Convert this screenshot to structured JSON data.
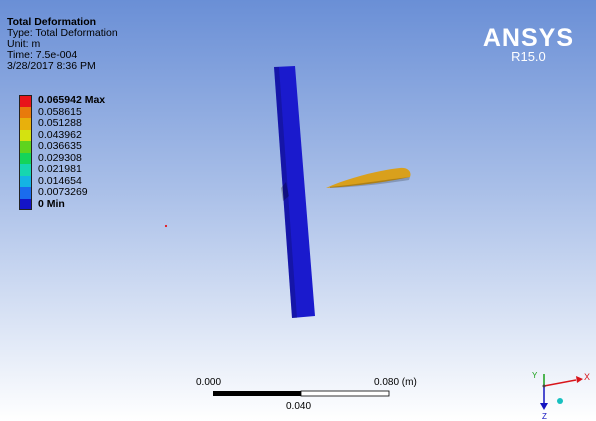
{
  "result": {
    "title": "Total Deformation",
    "type": "Type: Total Deformation",
    "unit": "Unit: m",
    "time": "Time: 7.5e-004",
    "date": "3/28/2017 8:36 PM"
  },
  "brand": {
    "name": "ANSYS",
    "version": "R15.0"
  },
  "legend": {
    "entries": [
      {
        "label": "0.065942 Max",
        "color": "#e8141a"
      },
      {
        "label": "0.058615",
        "color": "#e87a0c"
      },
      {
        "label": "0.051288",
        "color": "#e8b00c"
      },
      {
        "label": "0.043962",
        "color": "#d4e210"
      },
      {
        "label": "0.036635",
        "color": "#5ed41e"
      },
      {
        "label": "0.029308",
        "color": "#14d45a"
      },
      {
        "label": "0.021981",
        "color": "#16d6b0"
      },
      {
        "label": "0.014654",
        "color": "#14b4e4"
      },
      {
        "label": "0.0073269",
        "color": "#1a6cee"
      },
      {
        "label": "0 Min",
        "color": "#1414c8"
      }
    ]
  },
  "scale_bar": {
    "start": "0.000",
    "end": "0.080 (m)",
    "mid": "0.040"
  },
  "triad": {
    "x": "X",
    "y": "Y",
    "z": "Z"
  },
  "colors": {
    "plate": "#1a1acd",
    "projectile": "#d9a01c"
  }
}
